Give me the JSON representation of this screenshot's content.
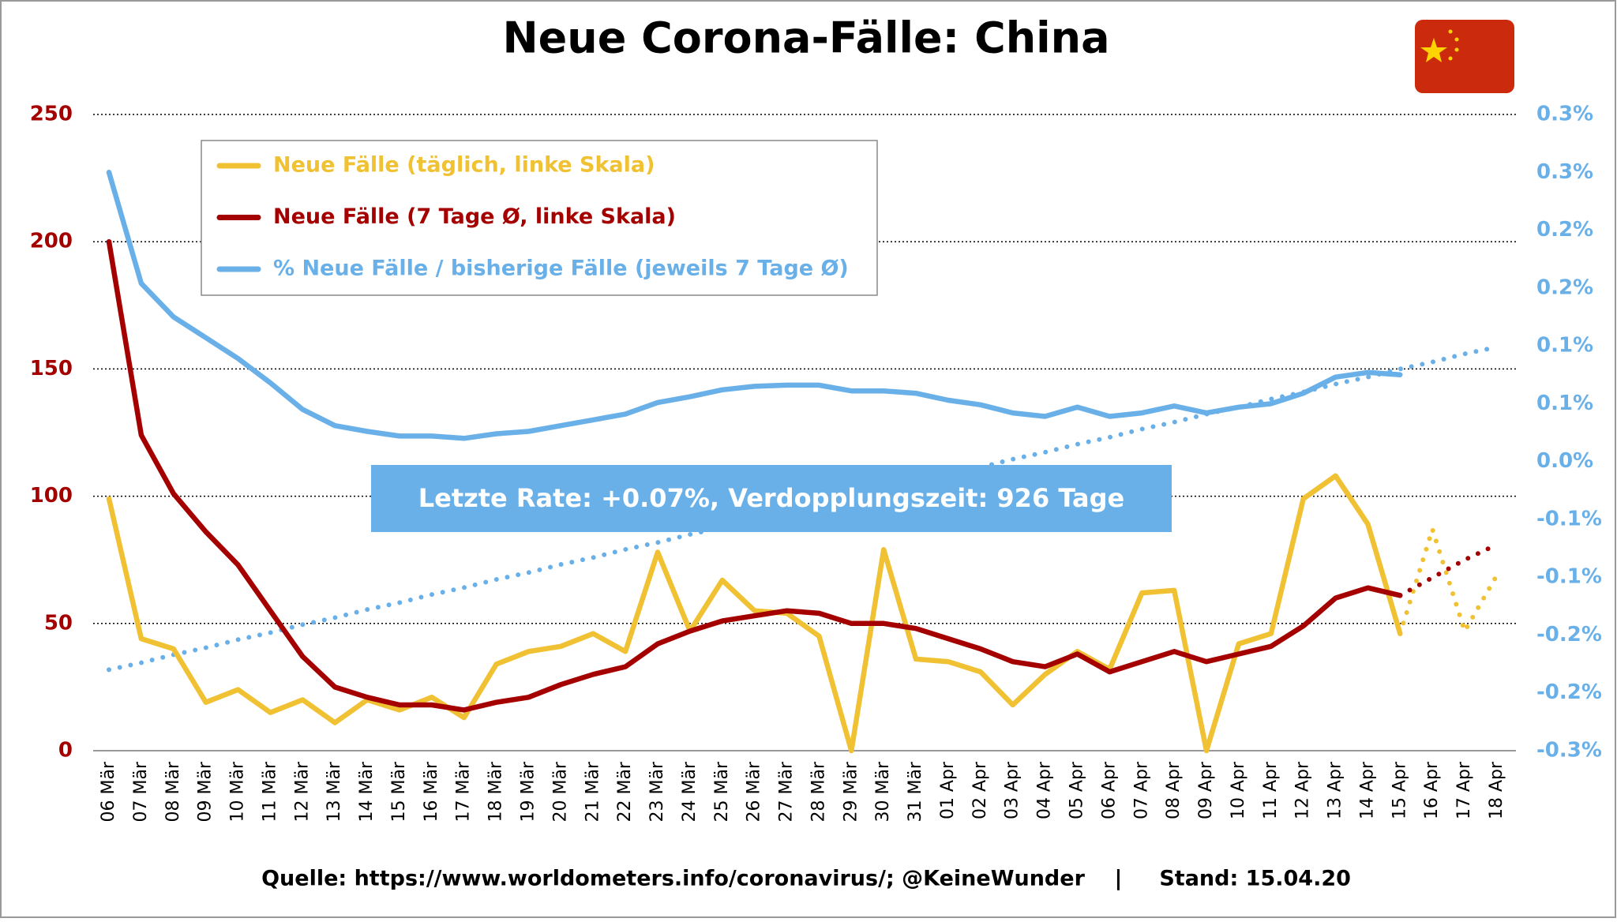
{
  "chart_data": {
    "type": "line",
    "title": "Neue Corona-Fälle: China",
    "annotation": "Letzte Rate: +0.07%, Verdopplungszeit: 926 Tage",
    "footer": "Quelle: https://www.worldometers.info/coronavirus/; @KeineWunder    |     Stand: 15.04.20",
    "categories": [
      "06 Mär",
      "07 Mär",
      "08 Mär",
      "09 Mär",
      "10 Mär",
      "11 Mär",
      "12 Mär",
      "13 Mär",
      "14 Mär",
      "15 Mär",
      "16 Mär",
      "17 Mär",
      "18 Mär",
      "19 Mär",
      "20 Mär",
      "21 Mär",
      "22 Mär",
      "23 Mär",
      "24 Mär",
      "25 Mär",
      "26 Mär",
      "27 Mär",
      "28 Mär",
      "29 Mär",
      "30 Mär",
      "31 Mär",
      "01 Apr",
      "02 Apr",
      "03 Apr",
      "04 Apr",
      "05 Apr",
      "06 Apr",
      "07 Apr",
      "08 Apr",
      "09 Apr",
      "10 Apr",
      "11 Apr",
      "12 Apr",
      "13 Apr",
      "14 Apr",
      "15 Apr",
      "16 Apr",
      "17 Apr",
      "18 Apr"
    ],
    "series": [
      {
        "name": "Neue Fälle (täglich, linke Skala)",
        "color": "#f0c132",
        "style": "solid",
        "values": [
          99,
          44,
          40,
          19,
          24,
          15,
          20,
          11,
          20,
          16,
          21,
          13,
          34,
          39,
          41,
          46,
          39,
          78,
          47,
          67,
          55,
          54,
          45,
          0,
          79,
          36,
          35,
          31,
          18,
          30,
          39,
          32,
          62,
          63,
          0,
          42,
          46,
          99,
          108,
          89,
          46,
          null,
          null,
          null
        ]
      },
      {
        "name": "Neue Fälle (7 Tage Ø, linke Skala)",
        "color": "#a50000",
        "style": "solid",
        "values": [
          200,
          124,
          101,
          86,
          73,
          55,
          37,
          25,
          21,
          18,
          18,
          16,
          19,
          21,
          26,
          30,
          33,
          42,
          47,
          51,
          53,
          55,
          54,
          50,
          50,
          48,
          44,
          40,
          35,
          33,
          38,
          31,
          35,
          39,
          35,
          38,
          41,
          49,
          60,
          64,
          61,
          null,
          null,
          null
        ]
      },
      {
        "name": "% Neue Fälle / bisherige Fälle (jeweils 7 Tage Ø)",
        "color": "#6ab0e8",
        "style": "solid",
        "axis": "y2",
        "values": [
          0.25,
          0.154,
          0.125,
          0.107,
          0.089,
          0.068,
          0.045,
          0.031,
          0.026,
          0.022,
          0.022,
          0.02,
          0.024,
          0.026,
          0.031,
          0.036,
          0.041,
          0.051,
          0.056,
          0.062,
          0.065,
          0.066,
          0.066,
          0.061,
          0.061,
          0.059,
          0.053,
          0.049,
          0.042,
          0.039,
          0.047,
          0.039,
          0.042,
          0.048,
          0.042,
          0.047,
          0.05,
          0.059,
          0.073,
          0.077,
          0.075,
          null,
          null,
          null
        ]
      },
      {
        "color": "#f0c132",
        "style": "dotted",
        "values": [
          null,
          null,
          null,
          null,
          null,
          null,
          null,
          null,
          null,
          null,
          null,
          null,
          null,
          null,
          null,
          null,
          null,
          null,
          null,
          null,
          null,
          null,
          null,
          null,
          null,
          null,
          null,
          null,
          null,
          null,
          null,
          null,
          null,
          null,
          null,
          null,
          null,
          null,
          null,
          null,
          46,
          87,
          47,
          69
        ]
      },
      {
        "color": "#a50000",
        "style": "dotted",
        "values": [
          null,
          null,
          null,
          null,
          null,
          null,
          null,
          null,
          null,
          null,
          null,
          null,
          null,
          null,
          null,
          null,
          null,
          null,
          null,
          null,
          null,
          null,
          null,
          null,
          null,
          null,
          null,
          null,
          null,
          null,
          null,
          null,
          null,
          null,
          null,
          null,
          null,
          null,
          null,
          null,
          61,
          68,
          75,
          81
        ]
      },
      {
        "color": "#6ab0e8",
        "style": "dotted",
        "axis": "y2",
        "values": [
          -0.18,
          -0.174,
          -0.167,
          -0.161,
          -0.154,
          -0.148,
          -0.141,
          -0.135,
          -0.128,
          -0.122,
          -0.115,
          -0.109,
          -0.102,
          -0.096,
          -0.089,
          -0.083,
          -0.076,
          -0.07,
          -0.063,
          -0.057,
          -0.05,
          -0.044,
          -0.037,
          -0.031,
          -0.024,
          -0.018,
          -0.011,
          -0.005,
          0.002,
          0.008,
          0.015,
          0.021,
          0.028,
          0.034,
          0.041,
          0.047,
          0.054,
          0.06,
          0.067,
          0.073,
          0.08,
          0.086,
          0.093,
          0.099
        ]
      }
    ],
    "ylim": [
      0,
      250
    ],
    "yticks": [
      0,
      50,
      100,
      150,
      200,
      250
    ],
    "y2lim": [
      -0.25,
      0.3
    ],
    "y2ticks": [
      {
        "value": -0.25,
        "label": "-0.3%"
      },
      {
        "value": -0.2,
        "label": "-0.2%"
      },
      {
        "value": -0.15,
        "label": "-0.2%"
      },
      {
        "value": -0.1,
        "label": "-0.1%"
      },
      {
        "value": -0.05,
        "label": "-0.1%"
      },
      {
        "value": 0.0,
        "label": "0.0%"
      },
      {
        "value": 0.05,
        "label": "0.1%"
      },
      {
        "value": 0.1,
        "label": "0.1%"
      },
      {
        "value": 0.15,
        "label": "0.2%"
      },
      {
        "value": 0.2,
        "label": "0.2%"
      },
      {
        "value": 0.25,
        "label": "0.3%"
      },
      {
        "value": 0.3,
        "label": "0.3%"
      }
    ],
    "grid": true,
    "ycolor": "#a50000",
    "y2color": "#6ab0e8"
  }
}
